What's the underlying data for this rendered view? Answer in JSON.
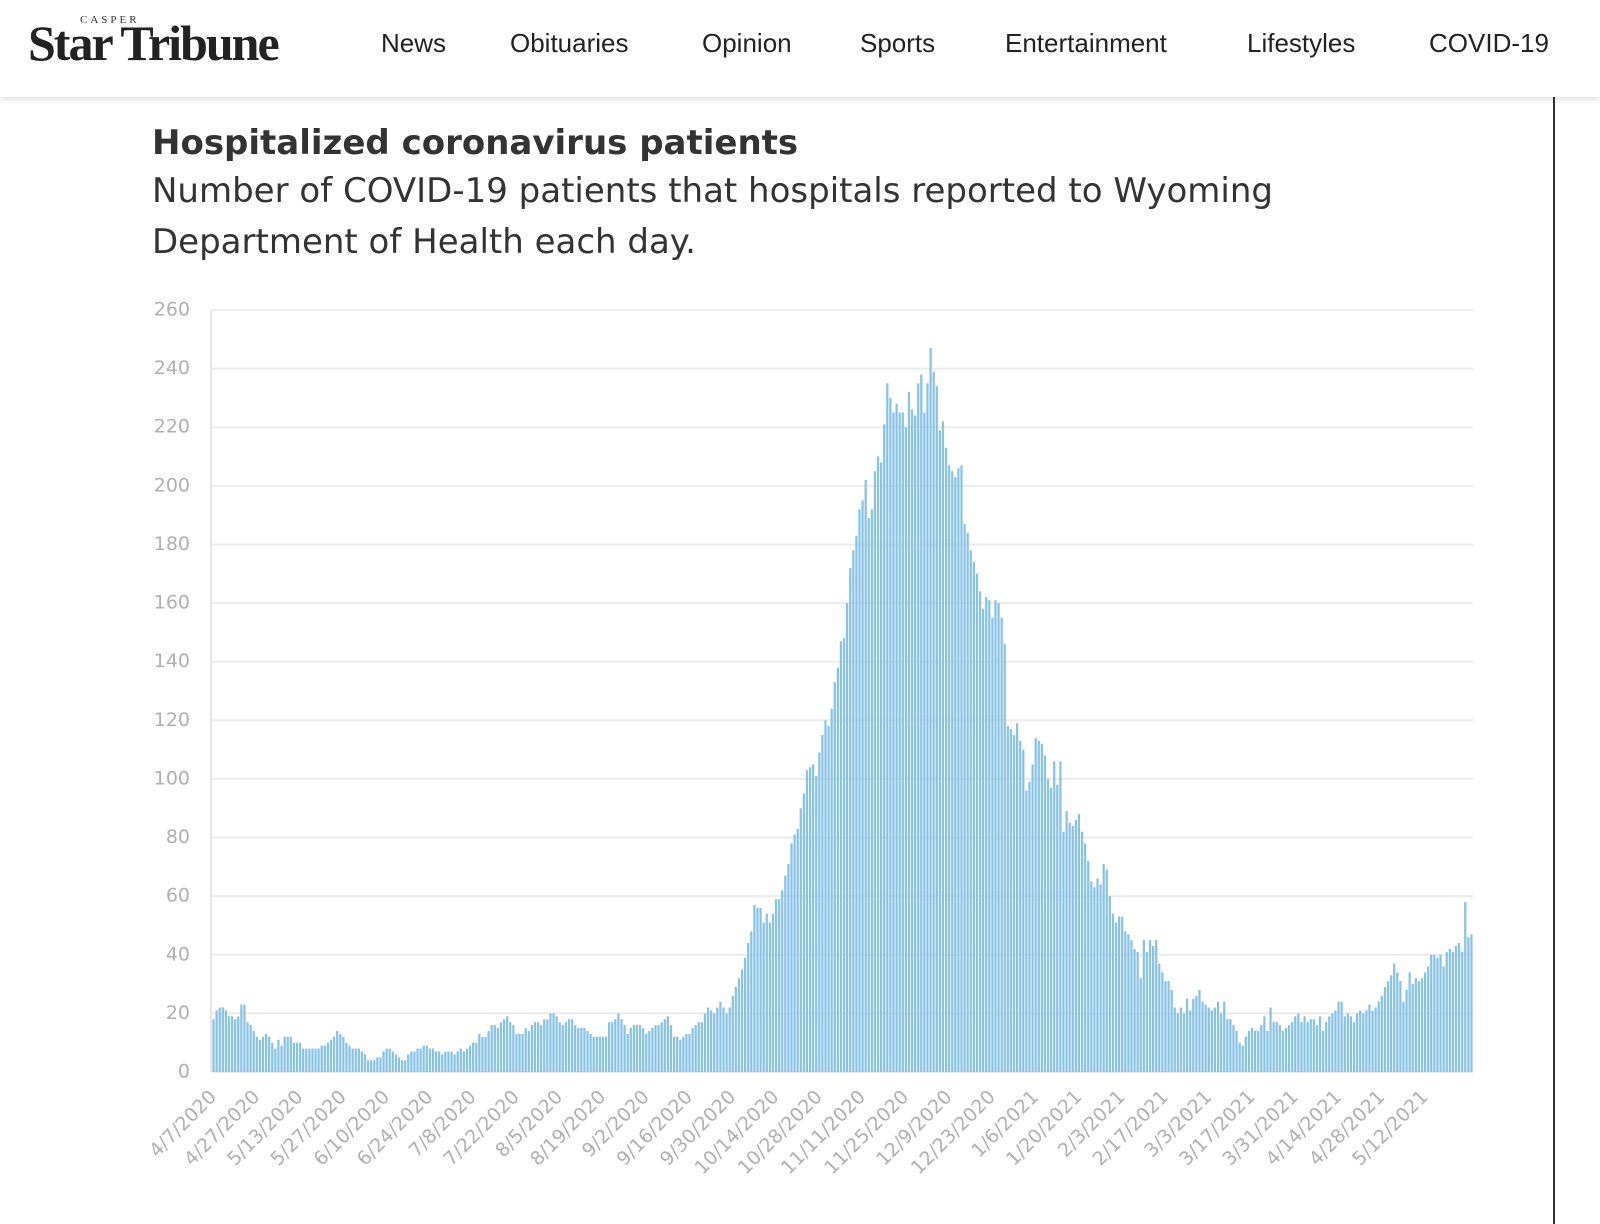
{
  "header": {
    "logo_small": "CASPER",
    "logo": "Star Tribune",
    "nav": [
      "News",
      "Obituaries",
      "Opinion",
      "Sports",
      "Entertainment",
      "Lifestyles",
      "COVID-19"
    ]
  },
  "chart_data": {
    "type": "bar",
    "title": "Hospitalized coronavirus patients",
    "subtitle": "Number of COVID-19 patients that hospitals reported to Wyoming Department of Health each day.",
    "color": "#86c1e6",
    "ylim": [
      0,
      260
    ],
    "yticks": [
      0,
      20,
      40,
      60,
      80,
      100,
      120,
      140,
      160,
      180,
      200,
      220,
      240,
      260
    ],
    "grid": true,
    "categories": [
      "4/7/2020",
      null,
      null,
      null,
      null,
      null,
      null,
      null,
      null,
      null,
      null,
      null,
      null,
      null,
      "4/27/2020",
      null,
      null,
      null,
      null,
      null,
      null,
      null,
      null,
      null,
      null,
      null,
      null,
      null,
      "5/13/2020",
      null,
      null,
      null,
      null,
      null,
      null,
      null,
      null,
      null,
      null,
      null,
      null,
      null,
      "5/27/2020",
      null,
      null,
      null,
      null,
      null,
      null,
      null,
      null,
      null,
      null,
      null,
      null,
      null,
      "6/10/2020",
      null,
      null,
      null,
      null,
      null,
      null,
      null,
      null,
      null,
      null,
      null,
      null,
      null,
      "6/24/2020",
      null,
      null,
      null,
      null,
      null,
      null,
      null,
      null,
      null,
      null,
      null,
      null,
      null,
      "7/8/2020",
      null,
      null,
      null,
      null,
      null,
      null,
      null,
      null,
      null,
      null,
      null,
      null,
      null,
      "7/22/2020",
      null,
      null,
      null,
      null,
      null,
      null,
      null,
      null,
      null,
      null,
      null,
      null,
      null,
      "8/5/2020",
      null,
      null,
      null,
      null,
      null,
      null,
      null,
      null,
      null,
      null,
      null,
      null,
      null,
      "8/19/2020",
      null,
      null,
      null,
      null,
      null,
      null,
      null,
      null,
      null,
      null,
      null,
      null,
      null,
      "9/2/2020",
      null,
      null,
      null,
      null,
      null,
      null,
      null,
      null,
      null,
      null,
      null,
      null,
      null,
      "9/16/2020",
      null,
      null,
      null,
      null,
      null,
      null,
      null,
      null,
      null,
      null,
      null,
      null,
      null,
      "9/30/2020",
      null,
      null,
      null,
      null,
      null,
      null,
      null,
      null,
      null,
      null,
      null,
      null,
      null,
      "10/14/2020",
      null,
      null,
      null,
      null,
      null,
      null,
      null,
      null,
      null,
      null,
      null,
      null,
      null,
      "10/28/2020",
      null,
      null,
      null,
      null,
      null,
      null,
      null,
      null,
      null,
      null,
      null,
      null,
      null,
      "11/11/2020",
      null,
      null,
      null,
      null,
      null,
      null,
      null,
      null,
      null,
      null,
      null,
      null,
      null,
      "11/25/2020",
      null,
      null,
      null,
      null,
      null,
      null,
      null,
      null,
      null,
      null,
      null,
      null,
      null,
      "12/9/2020",
      null,
      null,
      null,
      null,
      null,
      null,
      null,
      null,
      null,
      null,
      null,
      null,
      null,
      "12/23/2020",
      null,
      null,
      null,
      null,
      null,
      null,
      null,
      null,
      null,
      null,
      null,
      null,
      null,
      "1/6/2021",
      null,
      null,
      null,
      null,
      null,
      null,
      null,
      null,
      null,
      null,
      null,
      null,
      null,
      "1/20/2021",
      null,
      null,
      null,
      null,
      null,
      null,
      null,
      null,
      null,
      null,
      null,
      null,
      null,
      "2/3/2021",
      null,
      null,
      null,
      null,
      null,
      null,
      null,
      null,
      null,
      null,
      null,
      null,
      null,
      "2/17/2021",
      null,
      null,
      null,
      null,
      null,
      null,
      null,
      null,
      null,
      null,
      null,
      null,
      null,
      "3/3/2021",
      null,
      null,
      null,
      null,
      null,
      null,
      null,
      null,
      null,
      null,
      null,
      null,
      null,
      "3/17/2021",
      null,
      null,
      null,
      null,
      null,
      null,
      null,
      null,
      null,
      null,
      null,
      null,
      null,
      "3/31/2021",
      null,
      null,
      null,
      null,
      null,
      null,
      null,
      null,
      null,
      null,
      null,
      null,
      null,
      "4/14/2021",
      null,
      null,
      null,
      null,
      null,
      null,
      null,
      null,
      null,
      null,
      null,
      null,
      null,
      "4/28/2021",
      null,
      null,
      null,
      null,
      null,
      null,
      null,
      null,
      null,
      null,
      null,
      null,
      null,
      "5/12/2021",
      null,
      null,
      null,
      null,
      null,
      null,
      null,
      null,
      null,
      null,
      null,
      null,
      null,
      null,
      null
    ],
    "values": [
      18,
      21,
      22,
      22,
      21,
      19,
      19,
      18,
      19,
      23,
      23,
      17,
      16,
      14,
      12,
      11,
      12,
      13,
      12,
      10,
      8,
      11,
      9,
      12,
      12,
      12,
      10,
      10,
      10,
      8,
      8,
      8,
      8,
      8,
      8,
      9,
      9,
      10,
      11,
      12,
      14,
      13,
      12,
      10,
      9,
      8,
      8,
      8,
      7,
      6,
      4,
      4,
      4,
      5,
      5,
      7,
      8,
      8,
      7,
      6,
      5,
      4,
      4,
      6,
      7,
      7,
      8,
      8,
      9,
      9,
      8,
      8,
      7,
      7,
      6,
      7,
      7,
      7,
      6,
      7,
      8,
      7,
      8,
      9,
      10,
      10,
      13,
      12,
      12,
      14,
      16,
      16,
      15,
      17,
      18,
      19,
      17,
      16,
      13,
      13,
      13,
      15,
      14,
      16,
      17,
      17,
      16,
      18,
      18,
      20,
      20,
      19,
      17,
      16,
      17,
      18,
      18,
      16,
      15,
      15,
      15,
      14,
      13,
      12,
      12,
      12,
      12,
      12,
      17,
      17,
      18,
      20,
      18,
      16,
      13,
      15,
      16,
      16,
      16,
      15,
      13,
      14,
      15,
      16,
      16,
      17,
      18,
      19,
      16,
      12,
      12,
      11,
      12,
      13,
      13,
      15,
      16,
      17,
      17,
      20,
      22,
      21,
      20,
      22,
      24,
      22,
      20,
      22,
      26,
      29,
      32,
      35,
      39,
      44,
      48,
      57,
      56,
      56,
      51,
      54,
      51,
      54,
      59,
      59,
      62,
      67,
      71,
      78,
      81,
      83,
      90,
      95,
      103,
      104,
      105,
      101,
      109,
      115,
      120,
      118,
      124,
      133,
      138,
      147,
      148,
      160,
      172,
      178,
      183,
      192,
      195,
      202,
      189,
      192,
      205,
      210,
      208,
      221,
      235,
      230,
      225,
      228,
      225,
      225,
      220,
      232,
      226,
      224,
      235,
      238,
      225,
      235,
      247,
      239,
      234,
      219,
      222,
      213,
      207,
      205,
      203,
      206,
      207,
      187,
      184,
      178,
      174,
      170,
      164,
      158,
      162,
      161,
      155,
      161,
      160,
      155,
      146,
      118,
      117,
      115,
      119,
      113,
      110,
      96,
      99,
      105,
      114,
      113,
      112,
      108,
      100,
      97,
      106,
      98,
      106,
      82,
      89,
      85,
      84,
      86,
      88,
      82,
      78,
      72,
      65,
      63,
      66,
      64,
      71,
      69,
      60,
      54,
      51,
      53,
      53,
      48,
      47,
      45,
      42,
      41,
      32,
      45,
      41,
      45,
      43,
      45,
      37,
      34,
      31,
      31,
      28,
      22,
      20,
      22,
      20,
      25,
      21,
      25,
      26,
      28,
      24,
      23,
      22,
      21,
      22,
      24,
      20,
      24,
      18,
      18,
      16,
      14,
      10,
      9,
      12,
      14,
      15,
      14,
      14,
      16,
      19,
      14,
      22,
      17,
      17,
      16,
      14,
      15,
      16,
      17,
      19,
      20,
      17,
      19,
      17,
      18,
      18,
      16,
      19,
      14,
      17,
      19,
      20,
      21,
      24,
      24,
      19,
      20,
      19,
      17,
      20,
      21,
      20,
      21,
      23,
      21,
      22,
      24,
      26,
      29,
      31,
      33,
      37,
      34,
      31,
      24,
      28,
      34,
      30,
      32,
      31,
      32,
      34,
      36,
      40,
      40,
      39,
      40,
      36,
      41,
      42,
      41,
      43,
      44,
      41,
      58,
      46,
      47
    ]
  }
}
